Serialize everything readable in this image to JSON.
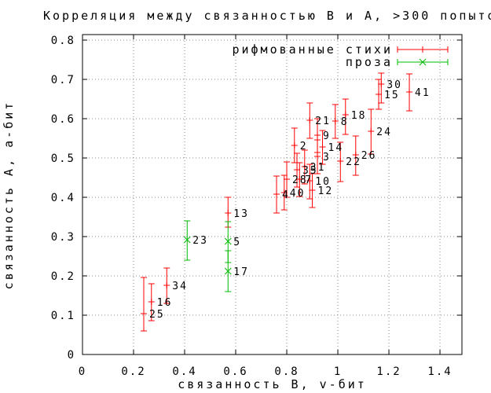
{
  "title": "Корреляция между связанностью B и A, >300 попыто",
  "colors": {
    "verse": "#ff0000",
    "prose": "#00bb00",
    "grid": "#8a8a8a",
    "axis": "#000000",
    "text": "#000000"
  },
  "chart_data": {
    "type": "scatter",
    "subtype": "yerrorbars-with-point-labels",
    "title": "Корреляция между связанностью B и A, >300 попыто",
    "xlabel": "связанность B, v-бит",
    "ylabel": "связанность A, a-бит",
    "xlim": [
      0,
      1.486
    ],
    "ylim": [
      0,
      0.814
    ],
    "grid": true,
    "legend_position": "top-right-inside",
    "x_ticks": [
      {
        "v": 0,
        "label": "0"
      },
      {
        "v": 0.2,
        "label": "0.2"
      },
      {
        "v": 0.4,
        "label": "0.4"
      },
      {
        "v": 0.6,
        "label": "0.6"
      },
      {
        "v": 0.8,
        "label": "0.8"
      },
      {
        "v": 1,
        "label": "1"
      },
      {
        "v": 1.2,
        "label": "1.2"
      },
      {
        "v": 1.4,
        "label": "1.4"
      }
    ],
    "y_ticks": [
      {
        "v": 0,
        "label": "0"
      },
      {
        "v": 0.1,
        "label": "0.1"
      },
      {
        "v": 0.2,
        "label": "0.2"
      },
      {
        "v": 0.3,
        "label": "0.3"
      },
      {
        "v": 0.4,
        "label": "0.4"
      },
      {
        "v": 0.5,
        "label": "0.5"
      },
      {
        "v": 0.6,
        "label": "0.6"
      },
      {
        "v": 0.7,
        "label": "0.7"
      },
      {
        "v": 0.8,
        "label": "0.8"
      }
    ],
    "series": [
      {
        "name": "рифмованные стихи",
        "color_key": "verse",
        "marker": "plus",
        "points": [
          {
            "label": "30",
            "x": 1.17,
            "y": 0.688,
            "ylo": 0.64,
            "yhi": 0.716
          },
          {
            "label": "15",
            "x": 1.16,
            "y": 0.662,
            "ylo": 0.624,
            "yhi": 0.7
          },
          {
            "label": "41",
            "x": 1.28,
            "y": 0.668,
            "ylo": 0.62,
            "yhi": 0.714
          },
          {
            "label": "18",
            "x": 1.03,
            "y": 0.61,
            "ylo": 0.56,
            "yhi": 0.65
          },
          {
            "label": "24",
            "x": 1.13,
            "y": 0.568,
            "ylo": 0.51,
            "yhi": 0.624
          },
          {
            "label": "21",
            "x": 0.89,
            "y": 0.596,
            "ylo": 0.55,
            "yhi": 0.64
          },
          {
            "label": "8",
            "x": 0.99,
            "y": 0.594,
            "ylo": 0.55,
            "yhi": 0.636
          },
          {
            "label": "26",
            "x": 1.07,
            "y": 0.508,
            "ylo": 0.456,
            "yhi": 0.556
          },
          {
            "label": "22",
            "x": 1.01,
            "y": 0.492,
            "ylo": 0.44,
            "yhi": 0.54
          },
          {
            "label": "9",
            "x": 0.92,
            "y": 0.558,
            "ylo": 0.514,
            "yhi": 0.6
          },
          {
            "label": "2",
            "x": 0.83,
            "y": 0.532,
            "ylo": 0.488,
            "yhi": 0.576
          },
          {
            "label": "14",
            "x": 0.94,
            "y": 0.528,
            "ylo": 0.484,
            "yhi": 0.57
          },
          {
            "label": "3",
            "x": 0.92,
            "y": 0.504,
            "ylo": 0.46,
            "yhi": 0.546
          },
          {
            "label": "31",
            "x": 0.87,
            "y": 0.478,
            "ylo": 0.434,
            "yhi": 0.52
          },
          {
            "label": "35",
            "x": 0.84,
            "y": 0.47,
            "ylo": 0.426,
            "yhi": 0.512
          },
          {
            "label": "28",
            "x": 0.8,
            "y": 0.446,
            "ylo": 0.4,
            "yhi": 0.49
          },
          {
            "label": "7",
            "x": 0.85,
            "y": 0.446,
            "ylo": 0.402,
            "yhi": 0.488
          },
          {
            "label": "10",
            "x": 0.89,
            "y": 0.442,
            "ylo": 0.396,
            "yhi": 0.484
          },
          {
            "label": "12",
            "x": 0.9,
            "y": 0.418,
            "ylo": 0.374,
            "yhi": 0.46
          },
          {
            "label": "40",
            "x": 0.79,
            "y": 0.412,
            "ylo": 0.368,
            "yhi": 0.456
          },
          {
            "label": "4",
            "x": 0.76,
            "y": 0.408,
            "ylo": 0.36,
            "yhi": 0.454
          },
          {
            "label": "13",
            "x": 0.57,
            "y": 0.36,
            "ylo": 0.324,
            "yhi": 0.4
          },
          {
            "label": "34",
            "x": 0.33,
            "y": 0.176,
            "ylo": 0.13,
            "yhi": 0.22
          },
          {
            "label": "16",
            "x": 0.27,
            "y": 0.134,
            "ylo": 0.086,
            "yhi": 0.18
          },
          {
            "label": "25",
            "x": 0.24,
            "y": 0.104,
            "ylo": 0.06,
            "yhi": 0.196
          }
        ]
      },
      {
        "name": "проза",
        "color_key": "prose",
        "marker": "cross",
        "points": [
          {
            "label": "23",
            "x": 0.41,
            "y": 0.292,
            "ylo": 0.24,
            "yhi": 0.34
          },
          {
            "label": "5",
            "x": 0.57,
            "y": 0.288,
            "ylo": 0.234,
            "yhi": 0.338
          },
          {
            "label": "17",
            "x": 0.57,
            "y": 0.212,
            "ylo": 0.16,
            "yhi": 0.264
          }
        ]
      }
    ]
  }
}
